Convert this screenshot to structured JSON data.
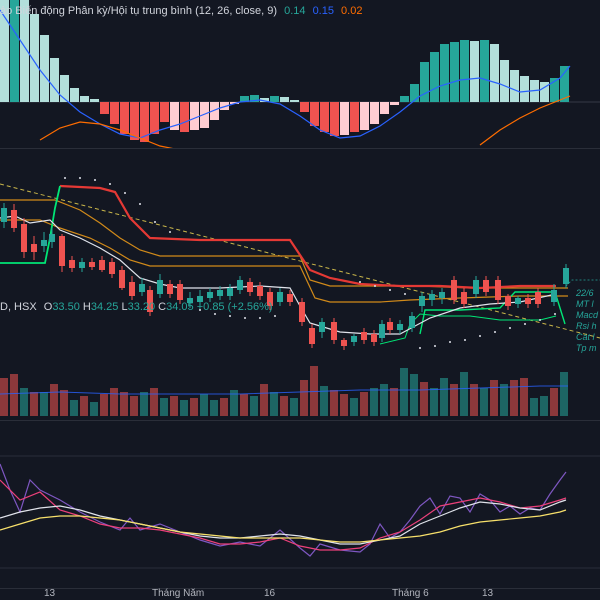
{
  "macd": {
    "title": "ảo Biến động Phân kỳ/Hội tụ trung bình (12, 26, close, 9)",
    "v1": "0.14",
    "v2": "0.15",
    "v3": "0.02",
    "colors": {
      "v1": "#26a69a",
      "v2": "#2962ff",
      "v3": "#ff6d00"
    }
  },
  "price": {
    "symbol_tail": "D, HSX",
    "o_label": "O",
    "o_val": "33.50",
    "h_label": "H",
    "h_val": "34.25",
    "l_label": "L",
    "l_val": "33.20",
    "c_label": "C",
    "c_val": "34.05",
    "change": "+0.85 (+2.56%)"
  },
  "annotation": {
    "lines": [
      "22/6",
      "MT l",
      "Macd",
      "Rsi h",
      "Cát l",
      "Tp m"
    ]
  },
  "time_axis": {
    "labels": [
      "13",
      "Tháng Năm",
      "16",
      "Tháng 6",
      "13"
    ]
  },
  "colors": {
    "up": "#26a69a",
    "down": "#ef5350",
    "bg": "#131722"
  }
}
